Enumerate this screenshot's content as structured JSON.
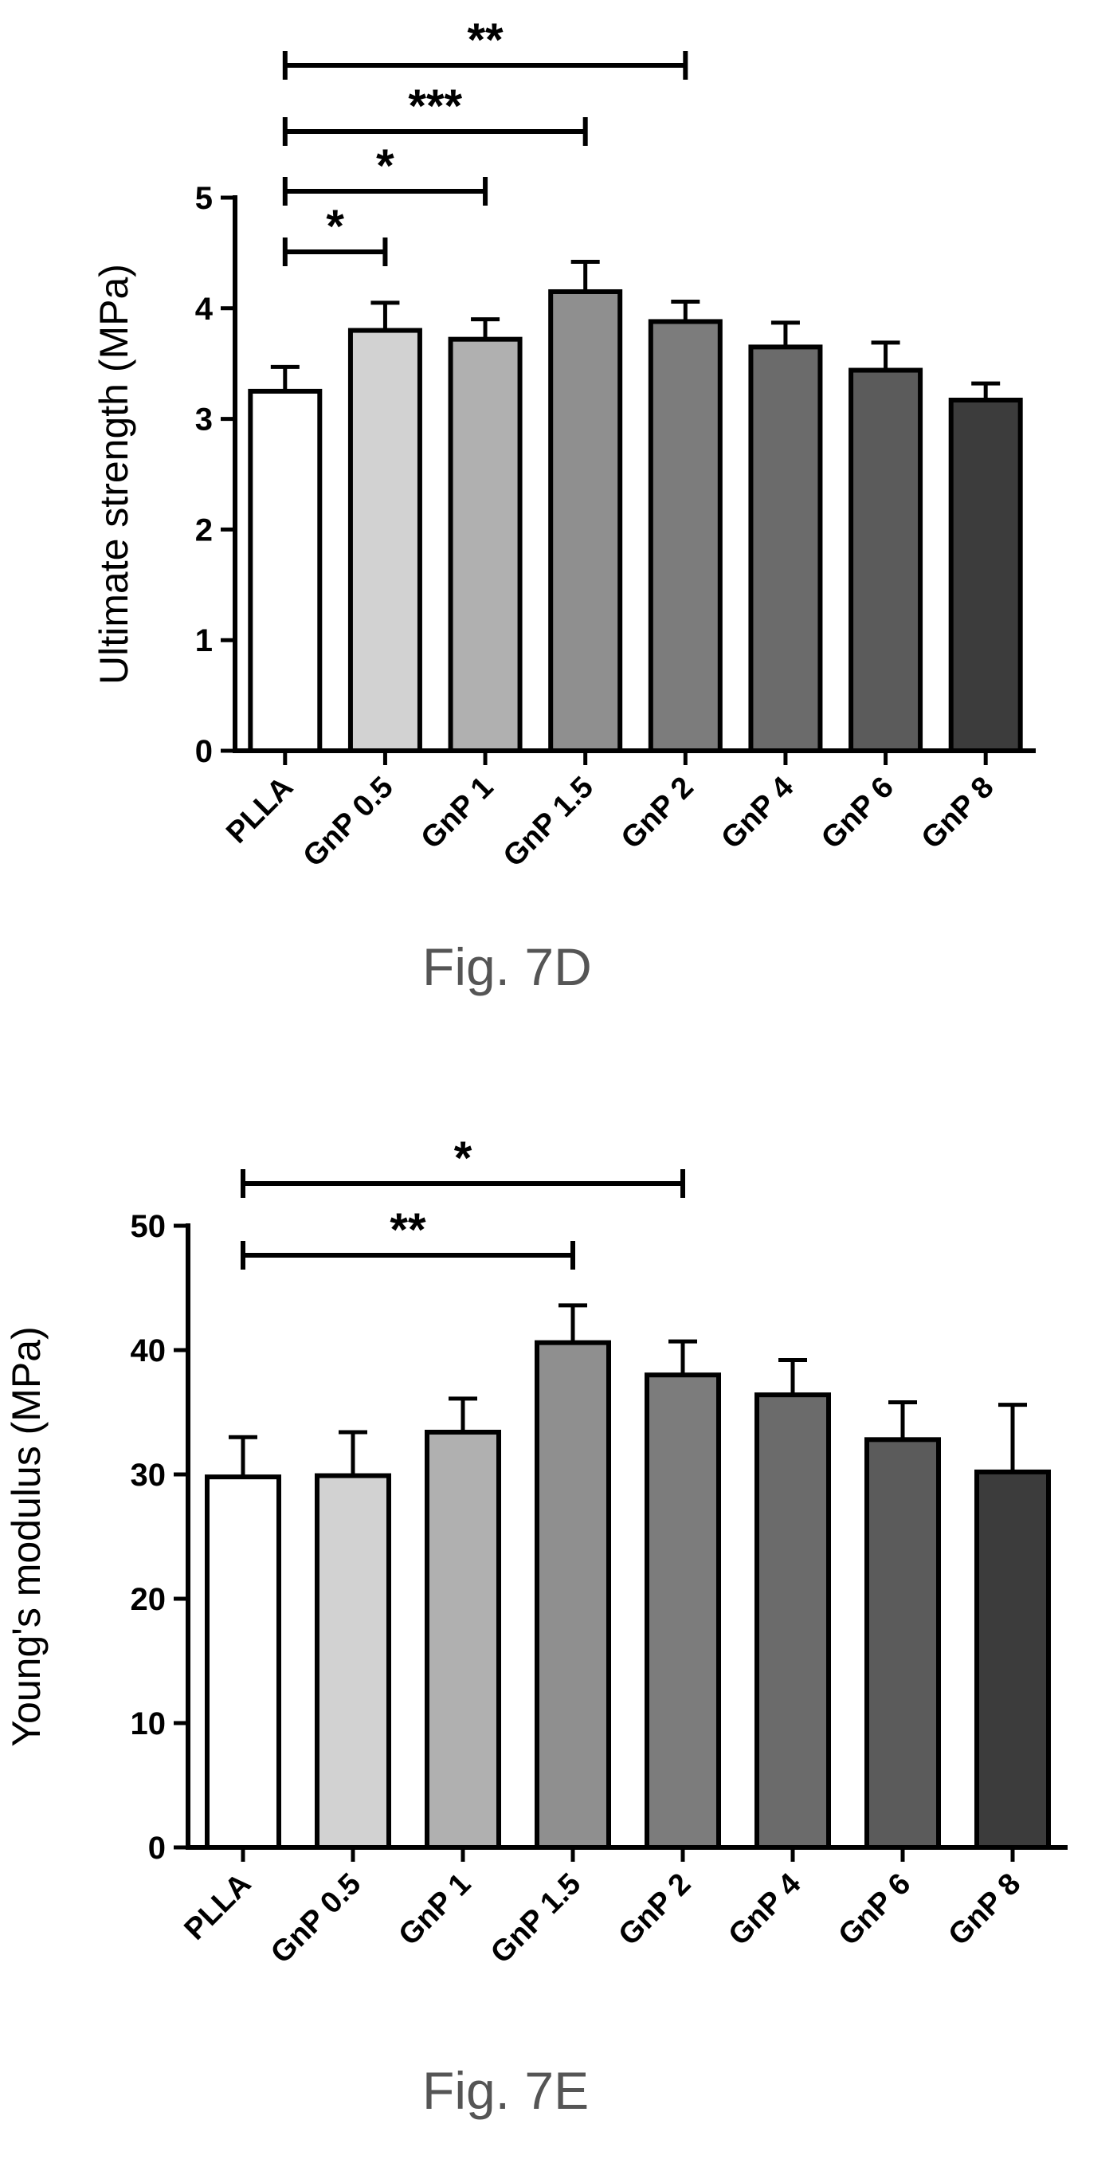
{
  "chart_data": [
    {
      "type": "bar",
      "caption": "Fig. 7D",
      "ylabel": "Ultimate strength (MPa)",
      "categories": [
        "PLLA",
        "GnP 0.5",
        "GnP 1",
        "GnP 1.5",
        "GnP 2",
        "GnP 4",
        "GnP 6",
        "GnP 8"
      ],
      "values": [
        3.25,
        3.8,
        3.72,
        4.15,
        3.88,
        3.65,
        3.44,
        3.17
      ],
      "errors": [
        0.22,
        0.25,
        0.18,
        0.27,
        0.18,
        0.22,
        0.25,
        0.15
      ],
      "bar_colors": [
        "#ffffff",
        "#d2d2d2",
        "#b0b0b0",
        "#8f8f8f",
        "#7c7c7c",
        "#6b6b6b",
        "#5b5b5b",
        "#3c3c3c"
      ],
      "ylim": [
        0,
        5
      ],
      "yticks": [
        "0",
        "1",
        "2",
        "3",
        "4",
        "5"
      ],
      "significance": [
        {
          "from": "PLLA",
          "to": "GnP 2",
          "label": "**"
        },
        {
          "from": "PLLA",
          "to": "GnP 1.5",
          "label": "***"
        },
        {
          "from": "PLLA",
          "to": "GnP 1",
          "label": "*"
        },
        {
          "from": "PLLA",
          "to": "GnP 0.5",
          "label": "*"
        }
      ]
    },
    {
      "type": "bar",
      "caption": "Fig. 7E",
      "ylabel": "Young's modulus (MPa)",
      "categories": [
        "PLLA",
        "GnP 0.5",
        "GnP 1",
        "GnP 1.5",
        "GnP 2",
        "GnP 4",
        "GnP 6",
        "GnP 8"
      ],
      "values": [
        29.8,
        29.9,
        33.4,
        40.6,
        38.0,
        36.4,
        32.8,
        30.2
      ],
      "errors": [
        3.2,
        3.5,
        2.7,
        3.0,
        2.7,
        2.8,
        3.0,
        5.4
      ],
      "bar_colors": [
        "#ffffff",
        "#d2d2d2",
        "#b0b0b0",
        "#8f8f8f",
        "#7c7c7c",
        "#6b6b6b",
        "#5b5b5b",
        "#3c3c3c"
      ],
      "ylim": [
        0,
        50
      ],
      "yticks": [
        "0",
        "10",
        "20",
        "30",
        "40",
        "50"
      ],
      "significance": [
        {
          "from": "PLLA",
          "to": "GnP 2",
          "label": "*"
        },
        {
          "from": "PLLA",
          "to": "GnP 1.5",
          "label": "**"
        }
      ]
    }
  ]
}
